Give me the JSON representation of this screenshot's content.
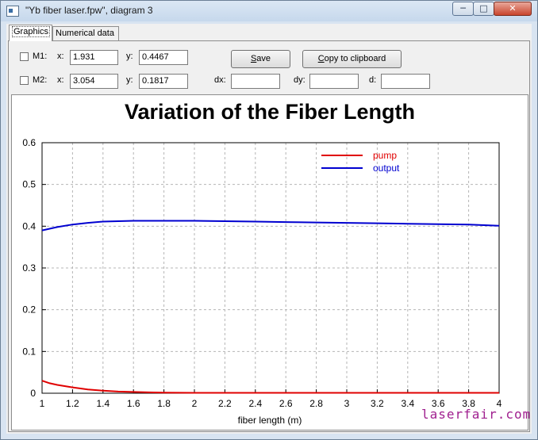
{
  "window": {
    "title": "\"Yb fiber laser.fpw\", diagram 3",
    "min_glyph": "─",
    "max_glyph": "□",
    "close_glyph": "✕"
  },
  "tabs": [
    {
      "label": "Graphics",
      "active": true
    },
    {
      "label": "Numerical data",
      "active": false
    }
  ],
  "markers": {
    "m1": {
      "label": "M1:",
      "x_label": "x:",
      "x_value": "1.931",
      "y_label": "y:",
      "y_value": "0.4467",
      "checked": false
    },
    "m2": {
      "label": "M2:",
      "x_label": "x:",
      "x_value": "3.054",
      "y_label": "y:",
      "y_value": "0.1817",
      "checked": false
    },
    "dx_label": "dx:",
    "dx_value": "",
    "dy_label": "dy:",
    "dy_value": "",
    "d_label": "d:",
    "d_value": ""
  },
  "buttons": {
    "save_prefix": "",
    "save_underline": "S",
    "save_rest": "ave",
    "copy_prefix": "",
    "copy_underline": "C",
    "copy_rest": "opy to clipboard"
  },
  "watermark": "laserfair.com",
  "chart_data": {
    "type": "line",
    "title": "Variation of the Fiber Length",
    "xlabel": "fiber length (m)",
    "ylabel": "",
    "xlim": [
      1,
      4
    ],
    "ylim": [
      0,
      0.6
    ],
    "xticks": [
      "1",
      "1.2",
      "1.4",
      "1.6",
      "1.8",
      "2",
      "2.2",
      "2.4",
      "2.6",
      "2.8",
      "3",
      "3.2",
      "3.4",
      "3.6",
      "3.8",
      "4"
    ],
    "yticks": [
      "0",
      "0.1",
      "0.2",
      "0.3",
      "0.4",
      "0.5",
      "0.6"
    ],
    "grid": true,
    "legend": "top-right",
    "series": [
      {
        "name": "pump",
        "color": "#e00000",
        "x": [
          1,
          1.05,
          1.1,
          1.2,
          1.3,
          1.4,
          1.5,
          1.6,
          1.7,
          1.8,
          2,
          2.5,
          3,
          3.5,
          4
        ],
        "y": [
          0.03,
          0.024,
          0.02,
          0.014,
          0.009,
          0.006,
          0.004,
          0.003,
          0.002,
          0.0015,
          0.001,
          0.001,
          0.001,
          0.001,
          0.001
        ]
      },
      {
        "name": "output",
        "color": "#0000d0",
        "x": [
          1,
          1.1,
          1.2,
          1.3,
          1.4,
          1.5,
          1.6,
          1.8,
          2,
          2.2,
          2.4,
          2.6,
          2.8,
          3,
          3.2,
          3.4,
          3.6,
          3.8,
          4
        ],
        "y": [
          0.39,
          0.398,
          0.404,
          0.408,
          0.411,
          0.412,
          0.413,
          0.413,
          0.413,
          0.412,
          0.411,
          0.41,
          0.409,
          0.408,
          0.407,
          0.406,
          0.405,
          0.404,
          0.401
        ]
      }
    ]
  }
}
